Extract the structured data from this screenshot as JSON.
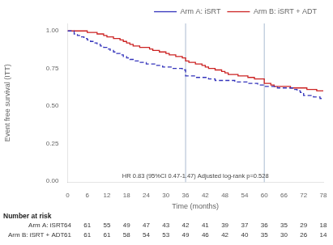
{
  "chart_data": {
    "type": "step",
    "xlabel": "Time (months)",
    "ylabel": "Event free survival (ITT)",
    "xlim": [
      0,
      78
    ],
    "ylim": [
      -0.01,
      1.05
    ],
    "xticks": [
      0,
      6,
      12,
      18,
      24,
      30,
      36,
      42,
      48,
      54,
      60,
      66,
      72,
      78
    ],
    "yticks": [
      {
        "value": 0.0,
        "label": "0.00"
      },
      {
        "value": 0.25,
        "label": "0.25"
      },
      {
        "value": 0.5,
        "label": "0.50"
      },
      {
        "value": 0.75,
        "label": "0.75"
      },
      {
        "value": 1.0,
        "label": "1.00"
      }
    ],
    "grid": false,
    "legend": "top-right",
    "x": [
      0,
      1,
      2,
      3,
      4,
      5,
      6,
      7,
      8,
      9,
      10,
      11,
      12,
      13,
      14,
      15,
      16,
      17,
      18,
      19,
      20,
      21,
      22,
      23,
      24,
      25,
      26,
      27,
      28,
      29,
      30,
      31,
      32,
      33,
      34,
      35,
      36,
      37,
      38,
      39,
      40,
      41,
      42,
      43,
      44,
      45,
      46,
      47,
      48,
      49,
      50,
      51,
      52,
      53,
      54,
      55,
      56,
      57,
      58,
      59,
      60,
      61,
      62,
      63,
      64,
      65,
      66,
      67,
      68,
      69,
      70,
      71,
      72,
      73,
      74,
      75,
      76,
      77,
      78
    ],
    "series": [
      {
        "name": "Arm A: iSRT",
        "color": "#3333bb",
        "line_style": "dashed",
        "values": [
          1.0,
          1.0,
          0.98,
          0.97,
          0.96,
          0.95,
          0.94,
          0.93,
          0.92,
          0.91,
          0.9,
          0.89,
          0.88,
          0.87,
          0.86,
          0.85,
          0.84,
          0.83,
          0.82,
          0.81,
          0.8,
          0.8,
          0.79,
          0.79,
          0.78,
          0.78,
          0.78,
          0.77,
          0.77,
          0.76,
          0.76,
          0.76,
          0.75,
          0.75,
          0.75,
          0.74,
          0.7,
          0.7,
          0.7,
          0.69,
          0.69,
          0.69,
          0.69,
          0.68,
          0.68,
          0.67,
          0.67,
          0.67,
          0.67,
          0.67,
          0.67,
          0.66,
          0.66,
          0.66,
          0.66,
          0.65,
          0.65,
          0.65,
          0.64,
          0.64,
          0.63,
          0.63,
          0.63,
          0.63,
          0.62,
          0.62,
          0.62,
          0.62,
          0.62,
          0.61,
          0.6,
          0.59,
          0.57,
          0.57,
          0.57,
          0.56,
          0.56,
          0.55,
          0.55
        ]
      },
      {
        "name": "Arm B: iSRT + ADT",
        "color": "#cc2222",
        "line_style": "solid",
        "values": [
          1.0,
          1.0,
          1.0,
          1.0,
          1.0,
          1.0,
          0.99,
          0.99,
          0.99,
          0.98,
          0.98,
          0.97,
          0.96,
          0.96,
          0.95,
          0.95,
          0.94,
          0.93,
          0.92,
          0.91,
          0.9,
          0.9,
          0.89,
          0.89,
          0.89,
          0.88,
          0.87,
          0.87,
          0.86,
          0.86,
          0.85,
          0.84,
          0.84,
          0.83,
          0.83,
          0.82,
          0.8,
          0.79,
          0.79,
          0.78,
          0.78,
          0.77,
          0.76,
          0.75,
          0.75,
          0.74,
          0.74,
          0.73,
          0.72,
          0.71,
          0.71,
          0.71,
          0.7,
          0.7,
          0.7,
          0.69,
          0.69,
          0.68,
          0.68,
          0.68,
          0.65,
          0.65,
          0.64,
          0.63,
          0.63,
          0.63,
          0.63,
          0.63,
          0.62,
          0.62,
          0.62,
          0.62,
          0.62,
          0.61,
          0.61,
          0.61,
          0.6,
          0.6,
          0.6
        ]
      }
    ],
    "vlines": {
      "values": [
        36,
        60
      ],
      "color": "#aabbd0"
    },
    "annotation": "HR 0.83 (95%CI 0.47-1.47) Adjusted log-rank p=0.528",
    "number_at_risk": {
      "title": "Number at risk",
      "rows": [
        {
          "name": "Arm A: iSRT",
          "values": [
            64,
            61,
            55,
            49,
            47,
            43,
            42,
            41,
            39,
            37,
            36,
            35,
            29,
            18
          ]
        },
        {
          "name": "Arm B: iSRT + ADT",
          "values": [
            61,
            61,
            61,
            58,
            54,
            53,
            49,
            46,
            42,
            40,
            35,
            30,
            26,
            14
          ]
        }
      ]
    }
  }
}
